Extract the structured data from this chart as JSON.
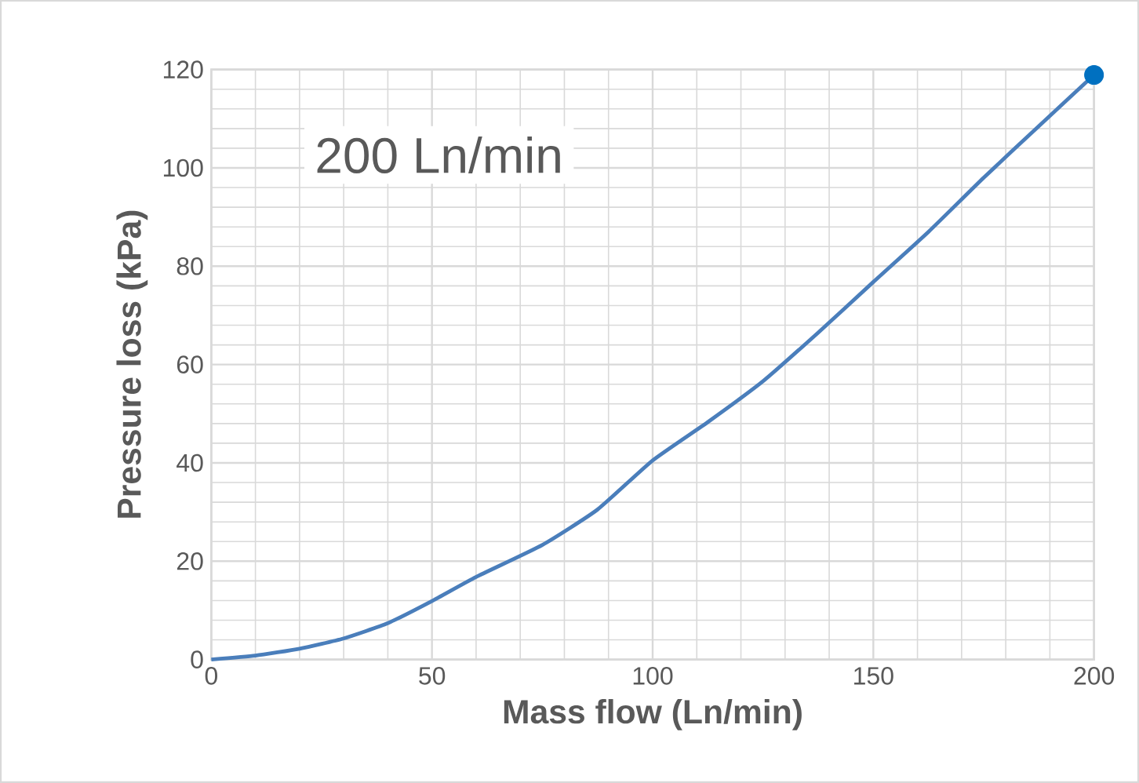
{
  "chart_data": {
    "type": "line",
    "xlabel": "Mass flow (Ln/min)",
    "ylabel": "Pressure loss (kPa)",
    "annotations": [
      "200 Ln/min"
    ],
    "x": [
      0,
      10,
      20,
      30,
      40,
      50,
      60,
      75,
      87.5,
      100,
      112.5,
      125,
      137.5,
      150,
      162.5,
      175,
      187.5,
      200
    ],
    "series": [
      {
        "color": "#4a7ebb",
        "values": [
          0,
          0.8,
          2.2,
          4.3,
          7.4,
          11.9,
          16.8,
          23.3,
          30.5,
          40.5,
          48.3,
          56.6,
          66.5,
          76.8,
          87,
          98,
          108.5,
          118.9
        ]
      },
      {
        "type": "scatter",
        "marker": "circle",
        "color": "#0070c0",
        "x": [
          200
        ],
        "values": [
          118.9
        ]
      }
    ],
    "xlim": [
      0,
      200
    ],
    "ylim": [
      0,
      120
    ],
    "xticks": [
      0,
      50,
      100,
      150,
      200
    ],
    "yticks": [
      0,
      20,
      40,
      60,
      80,
      100,
      120
    ],
    "grid": true
  }
}
